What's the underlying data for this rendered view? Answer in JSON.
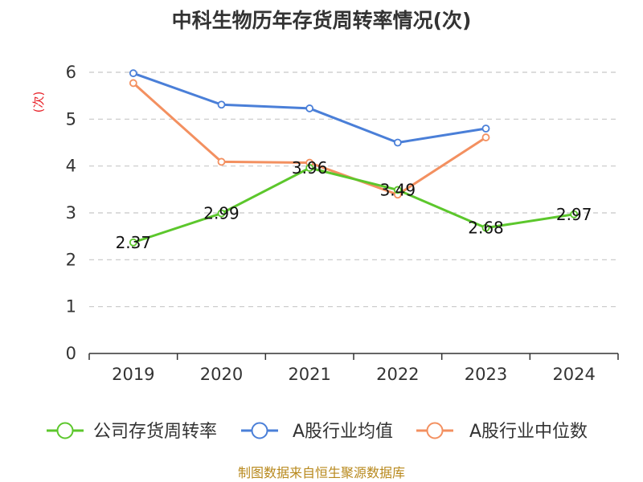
{
  "chart_data": {
    "type": "line",
    "title": "中科生物历年存货周转率情况(次)",
    "ylabel": "(次)",
    "xlabel": "",
    "categories": [
      "2019",
      "2020",
      "2021",
      "2022",
      "2023",
      "2024"
    ],
    "ylim": [
      0,
      6
    ],
    "yticks": [
      0,
      1,
      2,
      3,
      4,
      5,
      6
    ],
    "grid": true,
    "legend_position": "bottom",
    "series": [
      {
        "name": "公司存货周转率",
        "color": "#5cc72c",
        "values": [
          2.37,
          2.99,
          3.96,
          3.49,
          2.68,
          2.97
        ],
        "labels": [
          "2.37",
          "2.99",
          "3.96",
          "3.49",
          "2.68",
          "2.97"
        ]
      },
      {
        "name": "A股行业均值",
        "color": "#4a7fd8",
        "values": [
          5.98,
          5.31,
          5.23,
          4.5,
          4.8,
          null
        ]
      },
      {
        "name": "A股行业中位数",
        "color": "#f39060",
        "values": [
          5.77,
          4.09,
          4.07,
          3.39,
          4.61,
          null
        ]
      }
    ]
  },
  "source": "制图数据来自恒生聚源数据库"
}
